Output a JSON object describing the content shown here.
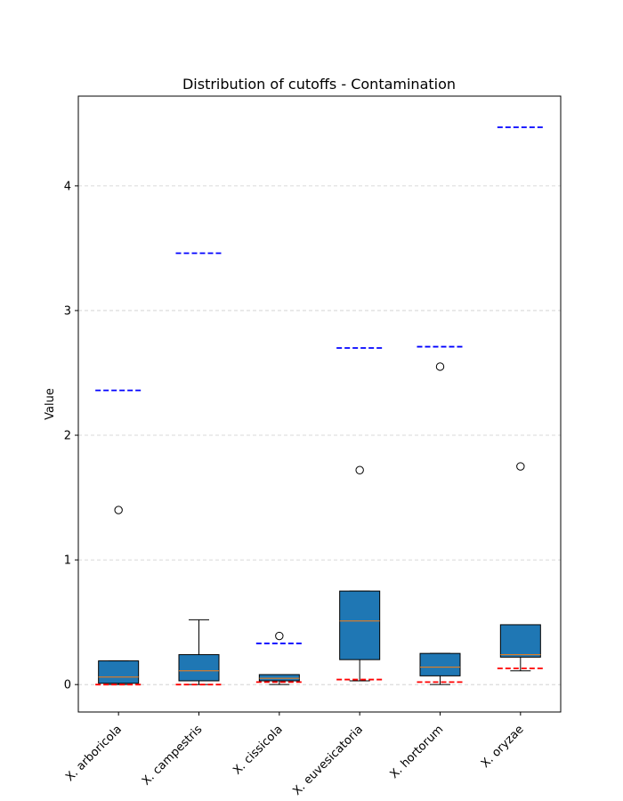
{
  "chart_data": {
    "type": "box",
    "title": "Distribution of cutoffs - Contamination",
    "xlabel": "",
    "ylabel": "Value",
    "ylim": [
      -0.22,
      4.72
    ],
    "yticks": [
      0,
      1,
      2,
      3,
      4
    ],
    "grid": "horizontal dashed",
    "categories": [
      "X. arboricola",
      "X. campestris",
      "X. cissicola",
      "X. euvesicatoria",
      "X. hortorum",
      "X. oryzae"
    ],
    "boxes": [
      {
        "whislo": 0.0,
        "q1": 0.01,
        "med": 0.06,
        "q3": 0.19,
        "whishi": 0.19,
        "fliers": [
          1.4
        ]
      },
      {
        "whislo": 0.0,
        "q1": 0.03,
        "med": 0.11,
        "q3": 0.24,
        "whishi": 0.52,
        "fliers": []
      },
      {
        "whislo": 0.0,
        "q1": 0.03,
        "med": 0.05,
        "q3": 0.08,
        "whishi": 0.08,
        "fliers": [
          0.39
        ]
      },
      {
        "whislo": 0.03,
        "q1": 0.2,
        "med": 0.51,
        "q3": 0.75,
        "whishi": 0.75,
        "fliers": [
          1.72
        ]
      },
      {
        "whislo": 0.0,
        "q1": 0.07,
        "med": 0.14,
        "q3": 0.25,
        "whishi": 0.25,
        "fliers": [
          2.55
        ]
      },
      {
        "whislo": 0.11,
        "q1": 0.22,
        "med": 0.24,
        "q3": 0.48,
        "whishi": 0.48,
        "fliers": [
          1.75
        ]
      }
    ],
    "upper_cutoffs": [
      2.36,
      3.46,
      0.33,
      2.7,
      2.71,
      4.47
    ],
    "lower_cutoffs": [
      0.0,
      0.0,
      0.02,
      0.04,
      0.02,
      0.13
    ],
    "colors": {
      "box_fill": "#1f77b4",
      "median": "#ff7f0e",
      "upper_cutoff": "#0000ff",
      "lower_cutoff": "#ff0000",
      "grid": "#cccccc"
    }
  }
}
